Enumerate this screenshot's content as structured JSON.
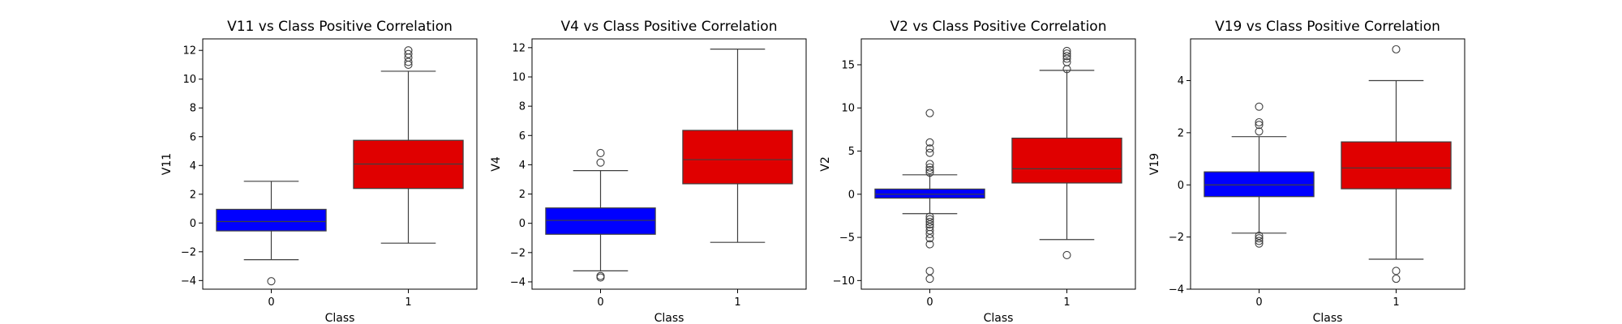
{
  "chart_data": [
    {
      "type": "box",
      "title": "V11 vs Class Positive Correlation",
      "xlabel": "Class",
      "ylabel": "V11",
      "categories": [
        "0",
        "1"
      ],
      "ylim": [
        -4.6,
        12.8
      ],
      "yticks": [
        -4,
        -2,
        0,
        2,
        4,
        6,
        8,
        10,
        12
      ],
      "grid": false,
      "boxes": [
        {
          "category": "0",
          "color": "#0000ff",
          "q1": -0.55,
          "median": 0.1,
          "q3": 0.95,
          "whisker_low": -2.55,
          "whisker_high": 2.9,
          "outliers": [
            -4.05
          ]
        },
        {
          "category": "1",
          "color": "#e00000",
          "q1": 2.4,
          "median": 4.1,
          "q3": 5.75,
          "whisker_low": -1.4,
          "whisker_high": 10.55,
          "outliers": [
            11.0,
            11.2,
            11.5,
            11.75,
            12.0
          ]
        }
      ]
    },
    {
      "type": "box",
      "title": "V4 vs Class Positive Correlation",
      "xlabel": "Class",
      "ylabel": "V4",
      "categories": [
        "0",
        "1"
      ],
      "ylim": [
        -4.5,
        12.6
      ],
      "yticks": [
        -4,
        -2,
        0,
        2,
        4,
        6,
        8,
        10,
        12
      ],
      "grid": false,
      "boxes": [
        {
          "category": "0",
          "color": "#0000ff",
          "q1": -0.75,
          "median": 0.2,
          "q3": 1.05,
          "whisker_low": -3.25,
          "whisker_high": 3.6,
          "outliers": [
            -3.6,
            -3.7,
            4.15,
            4.8
          ]
        },
        {
          "category": "1",
          "color": "#e00000",
          "q1": 2.7,
          "median": 4.35,
          "q3": 6.35,
          "whisker_low": -1.3,
          "whisker_high": 11.9,
          "outliers": []
        }
      ]
    },
    {
      "type": "box",
      "title": "V2 vs Class Positive Correlation",
      "xlabel": "Class",
      "ylabel": "V2",
      "categories": [
        "0",
        "1"
      ],
      "ylim": [
        -11.0,
        18.0
      ],
      "yticks": [
        -10,
        -5,
        0,
        5,
        10,
        15
      ],
      "grid": false,
      "boxes": [
        {
          "category": "0",
          "color": "#0000ff",
          "q1": -0.45,
          "median": 0.0,
          "q3": 0.6,
          "whisker_low": -2.25,
          "whisker_high": 2.25,
          "outliers": [
            -2.6,
            -2.9,
            -3.2,
            -3.5,
            -3.8,
            -4.2,
            -4.6,
            -5.1,
            -5.8,
            -8.9,
            -9.8,
            2.5,
            2.8,
            3.1,
            3.5,
            4.8,
            5.3,
            6.0,
            9.4
          ]
        },
        {
          "category": "1",
          "color": "#e00000",
          "q1": 1.3,
          "median": 2.95,
          "q3": 6.5,
          "whisker_low": -5.25,
          "whisker_high": 14.35,
          "outliers": [
            -7.05,
            14.5,
            15.3,
            15.7,
            16.0,
            16.3,
            16.6
          ]
        }
      ]
    },
    {
      "type": "box",
      "title": "V19 vs Class Positive Correlation",
      "xlabel": "Class",
      "ylabel": "V19",
      "categories": [
        "0",
        "1"
      ],
      "ylim": [
        -4.0,
        5.6
      ],
      "yticks": [
        -4,
        -2,
        0,
        2,
        4
      ],
      "grid": false,
      "boxes": [
        {
          "category": "0",
          "color": "#0000ff",
          "q1": -0.45,
          "median": 0.0,
          "q3": 0.5,
          "whisker_low": -1.85,
          "whisker_high": 1.85,
          "outliers": [
            -1.95,
            -2.05,
            -2.15,
            -2.25,
            2.05,
            2.3,
            2.4,
            3.0
          ]
        },
        {
          "category": "1",
          "color": "#e00000",
          "q1": -0.15,
          "median": 0.65,
          "q3": 1.65,
          "whisker_low": -2.85,
          "whisker_high": 4.0,
          "outliers": [
            -3.3,
            -3.6,
            5.2
          ]
        }
      ]
    }
  ]
}
